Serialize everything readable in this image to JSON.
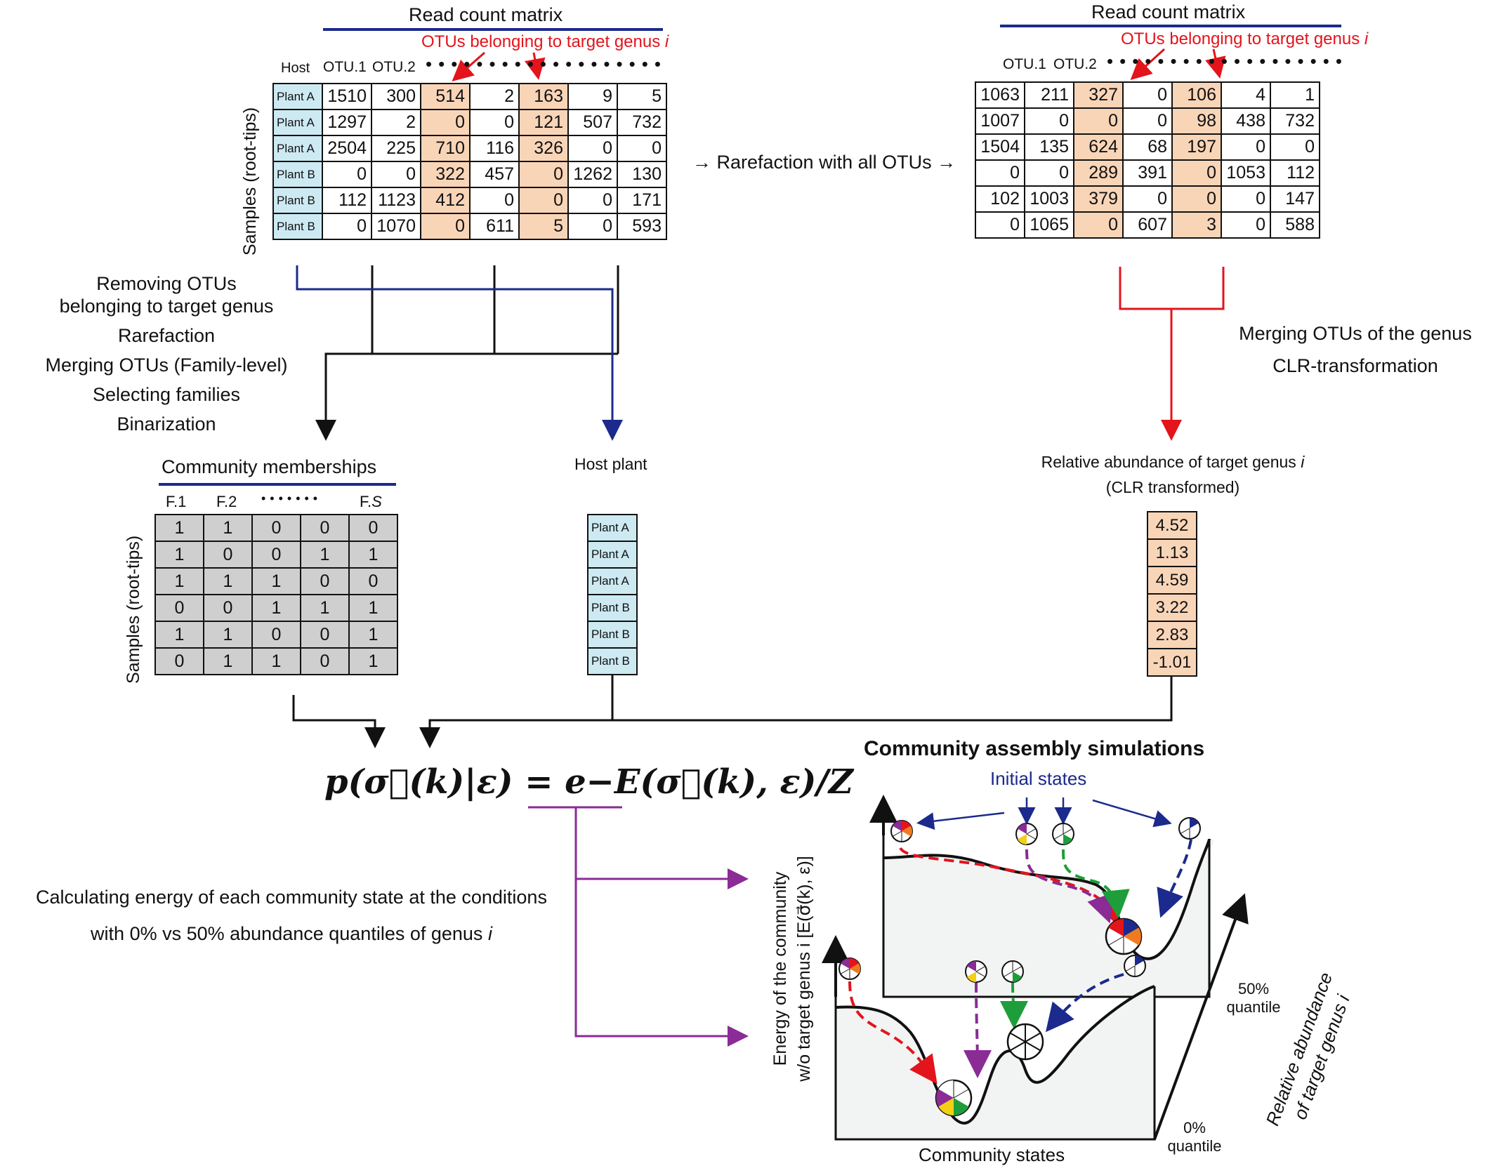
{
  "left_panel": {
    "title": "Read count matrix",
    "target_label": "OTUs belonging to target genus",
    "target_label_var": "i",
    "host_header": "Host",
    "col_headers": [
      "OTU.1",
      "OTU.2"
    ],
    "y_label": "Samples (root-tips)",
    "rows": [
      {
        "host": "Plant A",
        "values": [
          "1510",
          "300",
          "514",
          "2",
          "163",
          "9",
          "5"
        ]
      },
      {
        "host": "Plant A",
        "values": [
          "1297",
          "2",
          "0",
          "0",
          "121",
          "507",
          "732"
        ]
      },
      {
        "host": "Plant A",
        "values": [
          "2504",
          "225",
          "710",
          "116",
          "326",
          "0",
          "0"
        ]
      },
      {
        "host": "Plant B",
        "values": [
          "0",
          "0",
          "322",
          "457",
          "0",
          "1262",
          "130"
        ]
      },
      {
        "host": "Plant B",
        "values": [
          "112",
          "1123",
          "412",
          "0",
          "0",
          "0",
          "171"
        ]
      },
      {
        "host": "Plant B",
        "values": [
          "0",
          "1070",
          "0",
          "611",
          "5",
          "0",
          "593"
        ]
      }
    ]
  },
  "right_panel": {
    "title": "Read count matrix",
    "target_label": "OTUs belonging to target genus",
    "target_label_var": "i",
    "col_headers": [
      "OTU.1",
      "OTU.2"
    ],
    "rows": [
      [
        "1063",
        "211",
        "327",
        "0",
        "106",
        "4",
        "1"
      ],
      [
        "1007",
        "0",
        "0",
        "0",
        "98",
        "438",
        "732"
      ],
      [
        "1504",
        "135",
        "624",
        "68",
        "197",
        "0",
        "0"
      ],
      [
        "0",
        "0",
        "289",
        "391",
        "0",
        "1053",
        "112"
      ],
      [
        "102",
        "1003",
        "379",
        "0",
        "0",
        "0",
        "147"
      ],
      [
        "0",
        "1065",
        "0",
        "607",
        "3",
        "0",
        "588"
      ]
    ]
  },
  "middle_arrow_text": "→ Rarefaction with all OTUs →",
  "left_steps": [
    "Removing OTUs",
    "belonging to target genus",
    "Rarefaction",
    "Merging OTUs (Family-level)",
    "Selecting  families",
    "Binarization"
  ],
  "right_steps": [
    "Merging OTUs of the genus",
    "CLR-transformation"
  ],
  "community": {
    "title": "Community memberships",
    "col_headers": [
      "F.1",
      "F.2",
      "F."
    ],
    "col_last_var": "S",
    "dots": "•••••••",
    "y_label": "Samples (root-tips)",
    "rows": [
      [
        "1",
        "1",
        "0",
        "0",
        "0"
      ],
      [
        "1",
        "0",
        "0",
        "1",
        "1"
      ],
      [
        "1",
        "1",
        "1",
        "0",
        "0"
      ],
      [
        "0",
        "0",
        "1",
        "1",
        "1"
      ],
      [
        "1",
        "1",
        "0",
        "0",
        "1"
      ],
      [
        "0",
        "1",
        "1",
        "0",
        "1"
      ]
    ]
  },
  "host_plant": {
    "title": "Host plant",
    "values": [
      "Plant A",
      "Plant A",
      "Plant A",
      "Plant B",
      "Plant B",
      "Plant B"
    ]
  },
  "relative_abundance": {
    "title_line1": "Relative abundance of target genus",
    "title_var": "i",
    "title_line2": "(CLR transformed)",
    "values": [
      "4.52",
      "1.13",
      "4.59",
      "3.22",
      "2.83",
      "-1.01"
    ]
  },
  "equation": "p(σ⃗(k)|ε) = e−E(σ⃗(k), ε)/Z",
  "energy_text": {
    "line1": "Calculating energy of each community state at the conditions",
    "line2": "with 0% vs 50% abundance quantiles of genus",
    "line2_var": "i"
  },
  "simulation": {
    "title": "Community assembly simulations",
    "initial_states": "Initial states",
    "y_label_line1": "Energy of the community",
    "y_label_line2": "w/o target genus i [E(σ⃗(k), ε)]",
    "x_label": "Community states",
    "z_label_line1": "Relative abundance",
    "z_label_line2": "of target genus i",
    "q50_line1": "50%",
    "q50_line2": "quantile",
    "q0_line1": "0%",
    "q0_line2": "quantile"
  },
  "colors": {
    "host_fill": "#cdeaf3",
    "target_fill": "#f9d5b8",
    "binary_fill": "#cfcfcf",
    "red": "#e3141c",
    "navy": "#1b2a8c",
    "purple": "#8a2b96",
    "green": "#1e9e3a",
    "surface": "#f2f4f3"
  }
}
